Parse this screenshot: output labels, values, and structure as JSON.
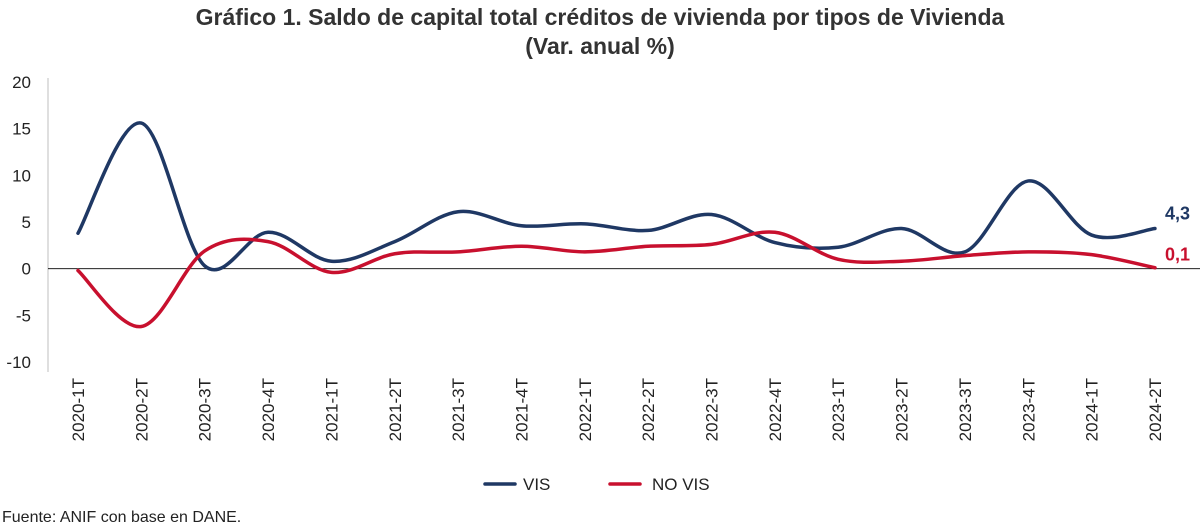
{
  "title_line1": "Gráfico 1. Saldo de capital total créditos de vivienda por tipos de Vivienda",
  "title_line2": "(Var. anual %)",
  "source": "Fuente: ANIF con base en DANE.",
  "chart_data": {
    "type": "line",
    "categories": [
      "2020-1T",
      "2020-2T",
      "2020-3T",
      "2020-4T",
      "2021-1T",
      "2021-2T",
      "2021-3T",
      "2021-4T",
      "2022-1T",
      "2022-2T",
      "2022-3T",
      "2022-4T",
      "2023-1T",
      "2023-2T",
      "2023-3T",
      "2023-4T",
      "2024-1T",
      "2024-2T"
    ],
    "series": [
      {
        "name": "VIS",
        "color": "#1f3864",
        "values": [
          3.8,
          15.6,
          0.3,
          3.9,
          0.8,
          2.9,
          6.1,
          4.6,
          4.8,
          4.1,
          5.8,
          2.8,
          2.3,
          4.3,
          1.8,
          9.4,
          3.6,
          4.3
        ]
      },
      {
        "name": "NO VIS",
        "color": "#c8102e",
        "values": [
          -0.2,
          -6.2,
          1.9,
          2.9,
          -0.4,
          1.6,
          1.8,
          2.4,
          1.8,
          2.4,
          2.6,
          3.9,
          1.0,
          0.8,
          1.4,
          1.8,
          1.5,
          0.1
        ]
      }
    ],
    "end_labels": [
      "4,3",
      "0,1"
    ],
    "yticks": [
      "20",
      "15",
      "10",
      "5",
      "0",
      "-5",
      "-10"
    ],
    "ylim": [
      -10,
      20
    ],
    "legend": "bottom-center"
  }
}
